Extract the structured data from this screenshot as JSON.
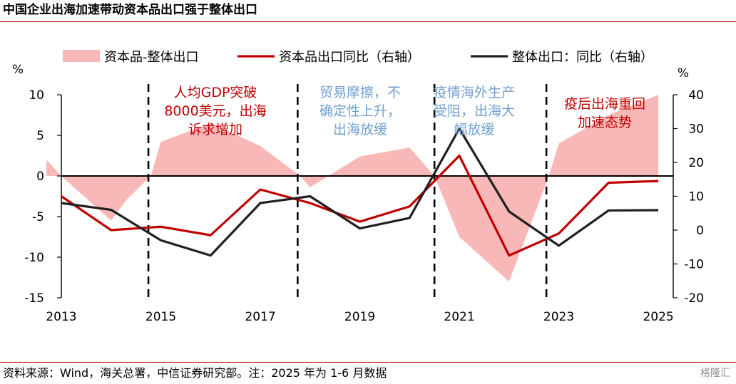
{
  "title": "中国企业出海加速带动资本品出口强于整体出口",
  "source": "资料来源：Wind，海关总署，中信证券研究部。注：2025 年为 1-6 月数据",
  "watermark": "格隆汇",
  "chart_data": {
    "type": "line",
    "x": [
      2012.7,
      2013,
      2014,
      2014.3,
      2014.8,
      2015,
      2016,
      2017,
      2017.8,
      2018,
      2019,
      2020,
      2020.5,
      2021,
      2022,
      2022.8,
      2023,
      2024,
      2025
    ],
    "left_axis": {
      "unit": "%",
      "ylim": [
        -15,
        10
      ],
      "ticks": [
        10,
        5,
        0,
        -5,
        -10,
        -15
      ]
    },
    "right_axis": {
      "unit": "%",
      "ylim": [
        -20,
        40
      ],
      "ticks": [
        40,
        30,
        20,
        10,
        0,
        -10,
        -20
      ]
    },
    "x_ticks": [
      2013,
      2015,
      2017,
      2019,
      2021,
      2023,
      2025
    ],
    "series": [
      {
        "name": "资本品-整体出口",
        "kind": "area",
        "axis": "left",
        "color": "#f9b8b8",
        "x": [
          2012.7,
          2013,
          2014,
          2014.3,
          2014.8,
          2015,
          2016,
          2017,
          2017.8,
          2018,
          2019,
          2020,
          2020.5,
          2021,
          2022,
          2022.8,
          2023,
          2024,
          2025
        ],
        "values": [
          2,
          0,
          -5.5,
          -3,
          0,
          4.2,
          6.5,
          3.7,
          0,
          -1.4,
          2.4,
          3.5,
          0,
          -7.5,
          -13,
          0,
          4,
          7.5,
          10
        ]
      },
      {
        "name": "资本品出口同比（右轴）",
        "kind": "line",
        "axis": "right",
        "color": "#c00000",
        "x": [
          2013,
          2014,
          2015,
          2016,
          2017,
          2018,
          2019,
          2020,
          2021,
          2022,
          2023,
          2024,
          2025
        ],
        "values": [
          10,
          0,
          1,
          -1.5,
          12,
          8,
          2.5,
          7,
          22,
          -7.5,
          -1,
          14,
          14.5
        ]
      },
      {
        "name": "整体出口：同比（右轴）",
        "kind": "line",
        "axis": "right",
        "color": "#231f20",
        "x": [
          2013,
          2014,
          2015,
          2016,
          2017,
          2018,
          2019,
          2020,
          2021,
          2022,
          2023,
          2024,
          2025
        ],
        "values": [
          8,
          6,
          -3,
          -7.5,
          8,
          10,
          0.5,
          3.6,
          30,
          5.5,
          -4.6,
          5.8,
          5.9
        ]
      }
    ],
    "dividers": [
      2014.75,
      2017.75,
      2020.5,
      2022.75
    ],
    "annotations": [
      {
        "lines": [
          "人均GDP突破",
          "8000美元，出海",
          "诉求增加"
        ],
        "color": "#c00000"
      },
      {
        "lines": [
          "贸易摩擦，不",
          "确定性上升，",
          "出海放缓"
        ],
        "color": "#6f9fd0"
      },
      {
        "lines": [
          "疫情海外生产",
          "受阻，出海大",
          "幅放缓"
        ],
        "color": "#6f9fd0"
      },
      {
        "lines": [
          "疫后出海重回",
          "加速态势"
        ],
        "color": "#c00000"
      }
    ],
    "legend_position": "top"
  }
}
